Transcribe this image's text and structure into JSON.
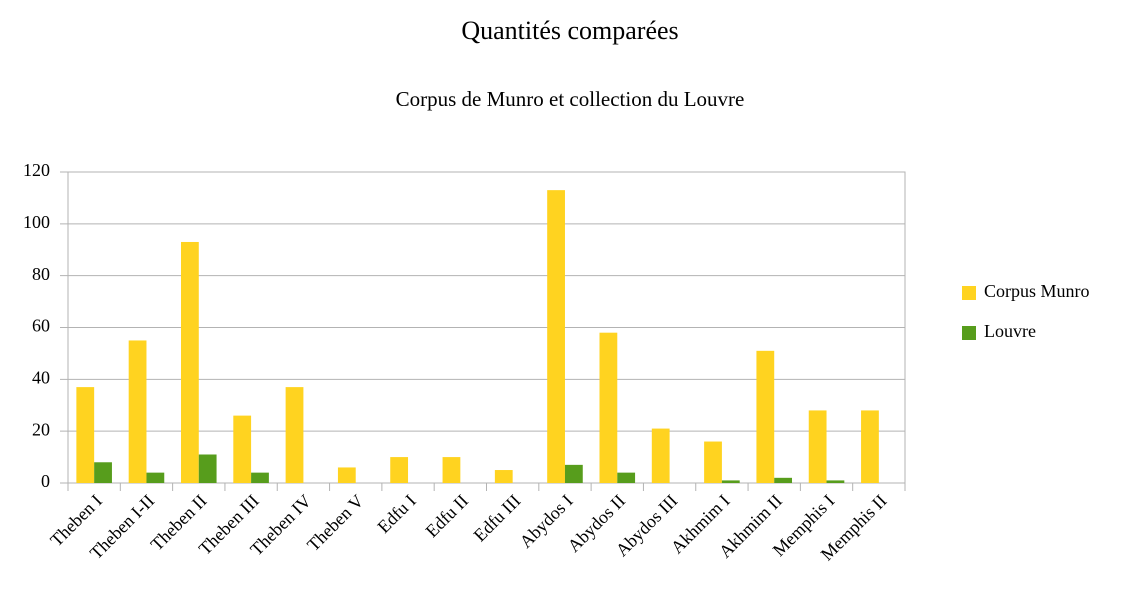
{
  "chart_data": {
    "type": "bar",
    "title": "Quantités comparées",
    "subtitle": "Corpus de Munro et collection du Louvre",
    "categories": [
      "Theben I",
      "Theben I-II",
      "Theben II",
      "Theben III",
      "Theben IV",
      "Theben V",
      "Edfu I",
      "Edfu II",
      "Edfu III",
      "Abydos I",
      "Abydos II",
      "Abydos III",
      "Akhmim I",
      "Akhmim II",
      "Memphis I",
      "Memphis II"
    ],
    "series": [
      {
        "name": "Corpus Munro",
        "color": "#ffd320",
        "values": [
          37,
          55,
          93,
          26,
          37,
          6,
          10,
          10,
          5,
          113,
          58,
          21,
          16,
          51,
          28,
          28
        ]
      },
      {
        "name": "Louvre",
        "color": "#579d1c",
        "values": [
          8,
          4,
          11,
          4,
          0,
          0,
          0,
          0,
          0,
          7,
          4,
          0,
          1,
          2,
          1,
          0
        ]
      }
    ],
    "ylim": [
      0,
      120
    ],
    "yticks": [
      0,
      20,
      40,
      60,
      80,
      100,
      120
    ],
    "grid": true,
    "legend": "right"
  }
}
